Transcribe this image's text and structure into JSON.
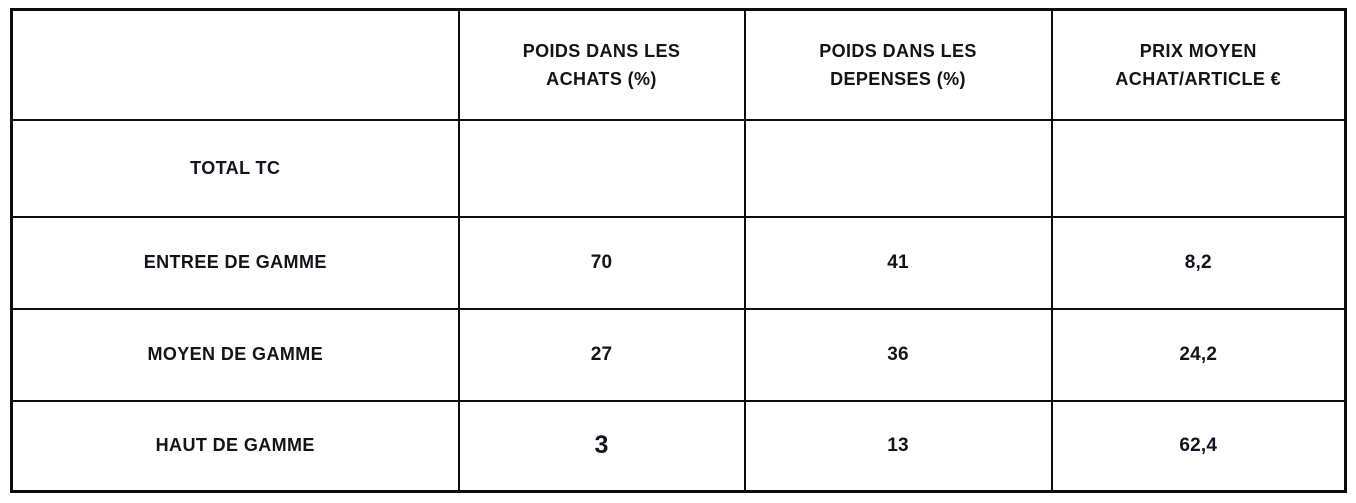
{
  "table": {
    "headers": [
      {
        "line1": "",
        "line2": ""
      },
      {
        "line1": "POIDS DANS LES",
        "line2": "ACHATS (%)"
      },
      {
        "line1": "POIDS DANS LES",
        "line2": "DEPENSES (%)"
      },
      {
        "line1": "PRIX MOYEN",
        "line2": "ACHAT/ARTICLE €"
      }
    ],
    "rows": [
      {
        "label": "TOTAL TC",
        "values": [
          "",
          "",
          ""
        ]
      },
      {
        "label": "ENTREE DE GAMME",
        "values": [
          "70",
          "41",
          "8,2"
        ]
      },
      {
        "label": "MOYEN DE GAMME",
        "values": [
          "27",
          "36",
          "24,2"
        ]
      },
      {
        "label": "HAUT DE GAMME",
        "values": [
          "3",
          "13",
          "62,4"
        ]
      }
    ],
    "colors": {
      "border": "#0d0d0d",
      "text": "#14121a",
      "background": "#ffffff"
    }
  }
}
